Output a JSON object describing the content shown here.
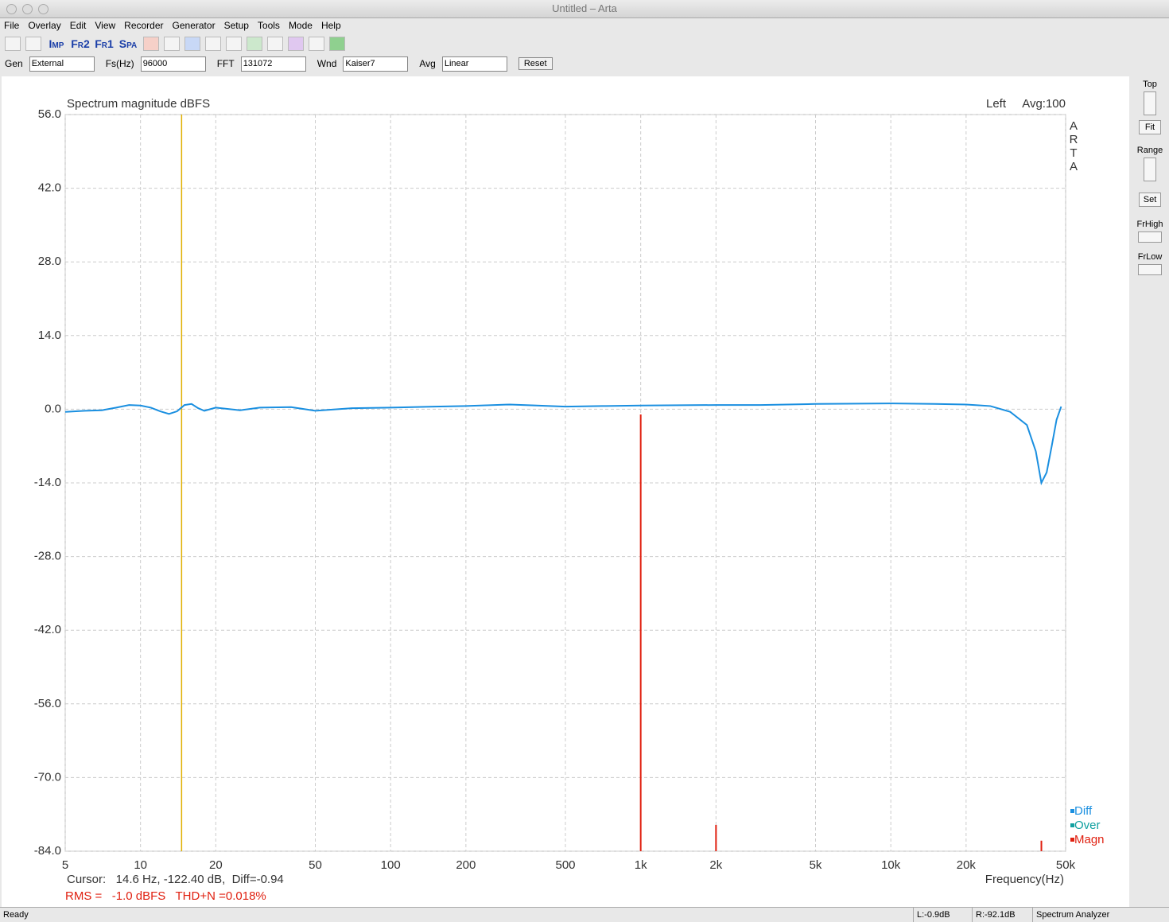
{
  "window": {
    "title": "Untitled – Arta"
  },
  "menu": [
    "File",
    "Overlay",
    "Edit",
    "View",
    "Recorder",
    "Generator",
    "Setup",
    "Tools",
    "Mode",
    "Help"
  ],
  "toolbar": {
    "mode_buttons": [
      "Imp",
      "Fr2",
      "Fr1",
      "Spa"
    ]
  },
  "settings": [
    {
      "label": "Gen",
      "value": "External"
    },
    {
      "label": "Fs(Hz)",
      "value": "96000"
    },
    {
      "label": "FFT",
      "value": "131072"
    },
    {
      "label": "Wnd",
      "value": "Kaiser7"
    },
    {
      "label": "Avg",
      "value": "Linear"
    }
  ],
  "reset_button": "Reset",
  "side_panel": {
    "top": "Top",
    "fit": "Fit",
    "range": "Range",
    "set": "Set",
    "fr_high": "FrHigh",
    "fr_low": "FrLow"
  },
  "status_bar": {
    "state": "Ready",
    "left_level": "L:-0.9dB",
    "right_level": "R:-92.1dB",
    "mode": "Spectrum Analyzer"
  },
  "chart_data": {
    "type": "line",
    "title": "Spectrum magnitude dBFS",
    "channel": "Left",
    "average": "Avg:100",
    "watermark": "ARTA",
    "x_label": "Frequency(Hz)",
    "xscale": "log",
    "grid": true,
    "legend": "bottom-right",
    "xlim": [
      5,
      50000
    ],
    "xticks": [
      5,
      10,
      20,
      50,
      100,
      200,
      500,
      {
        "value": 1000,
        "label": "1k"
      },
      {
        "value": 2000,
        "label": "2k"
      },
      {
        "value": 5000,
        "label": "5k"
      },
      {
        "value": 10000,
        "label": "10k"
      },
      {
        "value": 20000,
        "label": "20k"
      },
      {
        "value": 50000,
        "label": "50k"
      }
    ],
    "ylim": [
      -84,
      56
    ],
    "yticks": [
      {
        "value": 56,
        "label": "56.0"
      },
      {
        "value": 42,
        "label": "42.0"
      },
      {
        "value": 28,
        "label": "28.0"
      },
      {
        "value": 14,
        "label": "14.0"
      },
      {
        "value": 0,
        "label": "0.0"
      },
      {
        "value": -14,
        "label": "-14.0"
      },
      {
        "value": -28,
        "label": "-28.0"
      },
      {
        "value": -42,
        "label": "-42.0"
      },
      {
        "value": -56,
        "label": "-56.0"
      },
      {
        "value": -70,
        "label": "-70.0"
      },
      {
        "value": -84,
        "label": "-84.0"
      }
    ],
    "cursor_x": 14.6,
    "cursor_color": "#e0b000",
    "cursor_text": "Cursor:   14.6 Hz, -122.40 dB,  Diff=-0.94",
    "rms_text": "RMS =   -1.0 dBFS   THD+N =0.018%",
    "series": [
      {
        "name": "Diff",
        "color": "#1a8fe0",
        "style": "line",
        "x": [
          5,
          6,
          7,
          8,
          9,
          10,
          11,
          12,
          13,
          14,
          15,
          16,
          17,
          18,
          20,
          25,
          30,
          40,
          50,
          70,
          100,
          150,
          200,
          300,
          500,
          700,
          1000,
          2000,
          3000,
          5000,
          10000,
          15000,
          20000,
          25000,
          30000,
          35000,
          38000,
          40000,
          42000,
          44000,
          46000,
          48000
        ],
        "values": [
          -0.5,
          -0.3,
          -0.2,
          0.3,
          0.8,
          0.7,
          0.3,
          -0.4,
          -0.9,
          -0.4,
          0.8,
          1.0,
          0.2,
          -0.3,
          0.3,
          -0.2,
          0.3,
          0.4,
          -0.3,
          0.2,
          0.3,
          0.5,
          0.6,
          0.9,
          0.5,
          0.6,
          0.7,
          0.8,
          0.8,
          1.0,
          1.1,
          1.0,
          0.9,
          0.6,
          -0.5,
          -3,
          -8,
          -14,
          -12,
          -7,
          -2,
          0.5
        ]
      },
      {
        "name": "Over",
        "color": "#10a0a0",
        "style": "line",
        "x": [],
        "values": []
      },
      {
        "name": "Magn",
        "color": "#e02010",
        "style": "stem",
        "x": [
          1000,
          2000,
          40000
        ],
        "values": [
          -1,
          -79,
          -82
        ]
      }
    ]
  }
}
